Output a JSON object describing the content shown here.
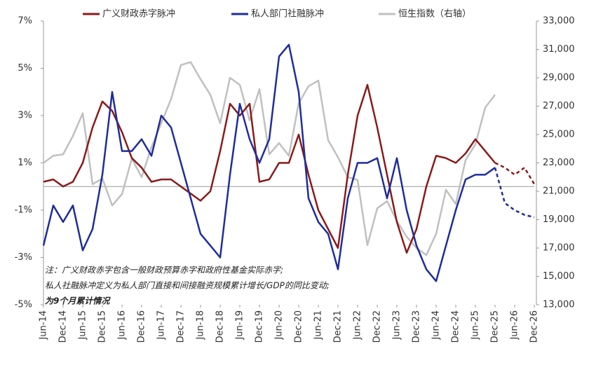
{
  "chart_data": {
    "type": "line",
    "categories": [
      "Jun-14",
      null,
      "Dec-14",
      null,
      "Jun-15",
      null,
      "Dec-15",
      null,
      "Jun-16",
      null,
      "Dec-16",
      null,
      "Jun-17",
      null,
      "Dec-17",
      null,
      "Jun-18",
      null,
      "Dec-18",
      null,
      "Jun-19",
      null,
      "Dec-19",
      null,
      "Jun-20",
      null,
      "Dec-20",
      null,
      "Jun-21",
      null,
      "Dec-21",
      null,
      "Jun-22",
      null,
      "Dec-22",
      null,
      "Jun-23",
      null,
      "Dec-23",
      null,
      "Jun-24",
      null,
      "Dec-24",
      null,
      "Jun-25",
      null,
      "Dec-25",
      null,
      "Jun-26",
      null,
      "Dec-26"
    ],
    "series": [
      {
        "name": "广义财政赤字脉冲",
        "color": "#8b1a1a",
        "dashed_from": 46,
        "values": [
          0.2,
          0.3,
          0.0,
          0.2,
          1.0,
          2.5,
          3.6,
          3.2,
          2.3,
          1.2,
          0.8,
          0.2,
          0.3,
          0.3,
          0.0,
          -0.3,
          -0.6,
          -0.2,
          1.5,
          3.5,
          3.0,
          3.5,
          0.2,
          0.3,
          1.0,
          1.0,
          2.2,
          0.5,
          -1.0,
          -1.8,
          -2.6,
          0.5,
          3.0,
          4.3,
          2.5,
          0.5,
          -1.5,
          -2.8,
          -1.8,
          0.0,
          1.3,
          1.2,
          1.0,
          1.4,
          2.0,
          1.5,
          1.0,
          0.8,
          0.5,
          0.8,
          0.1
        ]
      },
      {
        "name": "私人部门社融脉冲",
        "color": "#1f2d9c",
        "dashed_from": 46,
        "values": [
          -2.5,
          -0.8,
          -1.5,
          -0.8,
          -2.7,
          -1.8,
          0.5,
          4.0,
          1.5,
          1.5,
          2.0,
          1.3,
          3.0,
          2.5,
          1.0,
          -0.5,
          -2.0,
          -2.5,
          -3.0,
          0.5,
          3.5,
          2.0,
          1.0,
          2.0,
          5.5,
          6.0,
          4.0,
          -0.5,
          -1.5,
          -2.0,
          -3.5,
          -0.5,
          1.0,
          1.0,
          1.2,
          -0.5,
          1.2,
          -1.0,
          -2.5,
          -3.5,
          -4.0,
          -2.5,
          -1.0,
          0.3,
          0.5,
          0.5,
          0.8,
          -0.7,
          -1.0,
          -1.2,
          -1.3
        ]
      },
      {
        "name": "恒生指数（右轴）",
        "color": "#c0c0c0",
        "axis": "y2",
        "values": [
          23000,
          23500,
          23600,
          24900,
          26500,
          21500,
          21900,
          20000,
          20800,
          23300,
          22000,
          24100,
          25800,
          27500,
          29900,
          30100,
          28900,
          27800,
          25800,
          29000,
          28500,
          26000,
          28200,
          23600,
          24400,
          23500,
          27200,
          28400,
          28800,
          24600,
          23400,
          22000,
          21800,
          17200,
          19800,
          20300,
          18900,
          17800,
          17000,
          16500,
          18000,
          21100,
          20100,
          23200,
          24300,
          26900,
          27800,
          null,
          null,
          null,
          null
        ]
      }
    ],
    "ylim": [
      -5,
      7
    ],
    "yticks": [
      {
        "value": -5,
        "label": "-5%"
      },
      {
        "value": -3,
        "label": "-3%"
      },
      {
        "value": -1,
        "label": "-1%"
      },
      {
        "value": 1,
        "label": "1%"
      },
      {
        "value": 3,
        "label": "3%"
      },
      {
        "value": 5,
        "label": "5%"
      },
      {
        "value": 7,
        "label": "7%"
      }
    ],
    "y2lim": [
      13000,
      33000
    ],
    "y2ticks": [
      {
        "value": 13000,
        "label": "13,000"
      },
      {
        "value": 15000,
        "label": "15,000"
      },
      {
        "value": 17000,
        "label": "17,000"
      },
      {
        "value": 19000,
        "label": "19,000"
      },
      {
        "value": 21000,
        "label": "21,000"
      },
      {
        "value": 23000,
        "label": "23,000"
      },
      {
        "value": 25000,
        "label": "25,000"
      },
      {
        "value": 27000,
        "label": "27,000"
      },
      {
        "value": 29000,
        "label": "29,000"
      },
      {
        "value": 31000,
        "label": "31,000"
      },
      {
        "value": 33000,
        "label": "33,000"
      }
    ],
    "grid": false,
    "notes": [
      "注：广义财政赤字包含一般财政预算赤字和政府性基金实际赤字;",
      "私人社融脉冲定义为私人部门直接和间接融资规模累计增长/GDP的同比变动;",
      "为9个月累计情况"
    ]
  }
}
